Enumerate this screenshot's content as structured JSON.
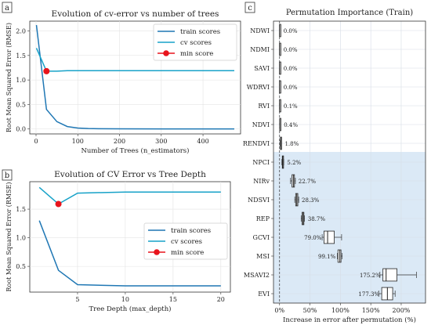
{
  "colors": {
    "train": "#1f77b4",
    "cv": "#17a2c8",
    "min": "#e8141c",
    "box_fill": "#ffffff",
    "highlight": "#dbe9f6",
    "zero_line": "#333333"
  },
  "chart_data": [
    {
      "panel_label": "a",
      "type": "line",
      "title": "Evolution of cv-error vs number of trees",
      "xlabel": "Number of Trees (n_estimators)",
      "ylabel": "Root Mean Squared Error (RMSE)",
      "xlim": [
        -15,
        490
      ],
      "ylim": [
        -0.1,
        2.2
      ],
      "xticks": [
        0,
        100,
        200,
        300,
        400
      ],
      "yticks": [
        0.0,
        0.5,
        1.0,
        1.5,
        2.0
      ],
      "ytick_labels": [
        "0.0",
        "0.5",
        "1.0",
        "1.5",
        "2.0"
      ],
      "grid": true,
      "legend_position": "top-right",
      "series": [
        {
          "name": "train scores",
          "x": [
            1,
            25,
            50,
            75,
            100,
            125,
            150,
            200,
            300,
            400,
            475
          ],
          "y": [
            2.12,
            0.4,
            0.15,
            0.05,
            0.02,
            0.01,
            0.005,
            0.004,
            0.003,
            0.003,
            0.003
          ]
        },
        {
          "name": "cv scores",
          "x": [
            1,
            25,
            50,
            75,
            100,
            150,
            200,
            300,
            400,
            475
          ],
          "y": [
            1.65,
            1.18,
            1.18,
            1.19,
            1.19,
            1.19,
            1.19,
            1.19,
            1.19,
            1.19
          ]
        }
      ],
      "min_score": {
        "name": "min score",
        "x": 25,
        "y": 1.18
      }
    },
    {
      "panel_label": "b",
      "type": "line",
      "title": "Evolution of CV Error vs Tree Depth",
      "xlabel": "Tree Depth (max_depth)",
      "ylabel": "Root Mean Squared Error (RMSE)",
      "xlim": [
        0,
        21
      ],
      "ylim": [
        0.05,
        1.98
      ],
      "xticks": [
        5,
        10,
        15,
        20
      ],
      "yticks": [
        0.5,
        1.0,
        1.5
      ],
      "ytick_labels": [
        "0.5",
        "1.0",
        "1.5"
      ],
      "grid": true,
      "legend_position": "center-right",
      "series": [
        {
          "name": "train scores",
          "x": [
            1,
            3,
            5,
            10,
            15,
            20
          ],
          "y": [
            1.3,
            0.43,
            0.18,
            0.16,
            0.16,
            0.16
          ]
        },
        {
          "name": "cv scores",
          "x": [
            1,
            3,
            5,
            10,
            15,
            20
          ],
          "y": [
            1.88,
            1.59,
            1.78,
            1.8,
            1.8,
            1.8
          ]
        }
      ],
      "min_score": {
        "name": "min score",
        "x": 3,
        "y": 1.59
      }
    },
    {
      "panel_label": "c",
      "type": "box",
      "title": "Permutation Importance (Train)",
      "xlabel": "Increase in error after permutation (%)",
      "xlim": [
        -10,
        240
      ],
      "xticks": [
        0,
        50,
        100,
        150,
        200
      ],
      "xtick_labels": [
        "0%",
        "50%",
        "100%",
        "150%",
        "200%"
      ],
      "categories": [
        "NDWI",
        "NDMI",
        "SAVI",
        "WDRVI",
        "RVI",
        "NDVI",
        "RENDVI",
        "NPCI",
        "NIRv",
        "NDSVI",
        "REP",
        "GCVI",
        "MSI",
        "MSAVI2",
        "EVI"
      ],
      "labels": [
        "0.0%",
        "0.0%",
        "0.0%",
        "0.0%",
        "0.1%",
        "0.4%",
        "1.8%",
        "5.2%",
        "22.7%",
        "28.3%",
        "38.7%",
        "79.0%",
        "99.1%",
        "175.2%",
        "177.3%"
      ],
      "values": [
        0.0,
        0.0,
        0.0,
        0.0,
        0.1,
        0.4,
        1.8,
        5.2,
        22.7,
        28.3,
        38.7,
        79.0,
        99.1,
        175.2,
        177.3
      ],
      "boxes": [
        {
          "q1": 0,
          "q3": 0,
          "lo": 0,
          "hi": 0
        },
        {
          "q1": 0,
          "q3": 0,
          "lo": 0,
          "hi": 0
        },
        {
          "q1": 0,
          "q3": 0,
          "lo": 0,
          "hi": 0
        },
        {
          "q1": 0,
          "q3": 0,
          "lo": 0,
          "hi": 0
        },
        {
          "q1": 0,
          "q3": 0.2,
          "lo": 0,
          "hi": 0.3
        },
        {
          "q1": 0.2,
          "q3": 0.6,
          "lo": 0,
          "hi": 0.8
        },
        {
          "q1": 1.3,
          "q3": 2.2,
          "lo": 0.8,
          "hi": 2.8
        },
        {
          "q1": 4.5,
          "q3": 6.0,
          "lo": 3.8,
          "hi": 6.8
        },
        {
          "q1": 20.5,
          "q3": 24.5,
          "lo": 18,
          "hi": 26
        },
        {
          "q1": 26.5,
          "q3": 30.0,
          "lo": 25,
          "hi": 31.5
        },
        {
          "q1": 37.0,
          "q3": 40.0,
          "lo": 35.5,
          "hi": 41
        },
        {
          "q1": 73,
          "q3": 90,
          "lo": 70,
          "hi": 102
        },
        {
          "q1": 96,
          "q3": 101,
          "lo": 95,
          "hi": 103
        },
        {
          "q1": 170,
          "q3": 193,
          "lo": 165,
          "hi": 225
        },
        {
          "q1": 168,
          "q3": 186,
          "lo": 163,
          "hi": 190
        }
      ],
      "highlight_from_category": "NPCI",
      "grid": true
    }
  ]
}
